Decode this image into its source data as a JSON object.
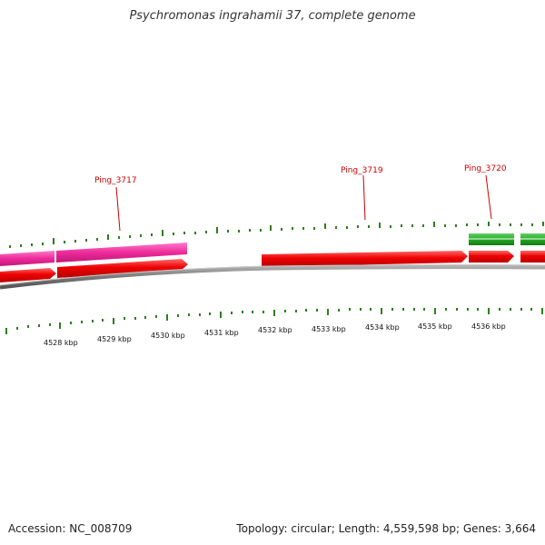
{
  "header": {
    "title": "Psychromonas ingrahamii 37, complete genome"
  },
  "footer": {
    "accession": "Accession: NC_008709",
    "summary": "Topology: circular; Length: 4,559,598 bp; Genes: 3,664"
  },
  "map": {
    "colors": {
      "backbone": "#808080",
      "forward_gene": "#ee0000",
      "pink_track": "#ee2a9a",
      "green_track": "#22aa22",
      "gene_label": "#cc0000",
      "gc_tick": "#2e7d1e"
    },
    "genes_labeled": [
      {
        "name": "Ping_3717"
      },
      {
        "name": "Ping_3719"
      },
      {
        "name": "Ping_3720"
      }
    ],
    "scale_labels": [
      "4528 kbp",
      "4529 kbp",
      "4530 kbp",
      "4531 kbp",
      "4532 kbp",
      "4533 kbp",
      "4534 kbp",
      "4535 kbp",
      "4536 kbp"
    ]
  }
}
